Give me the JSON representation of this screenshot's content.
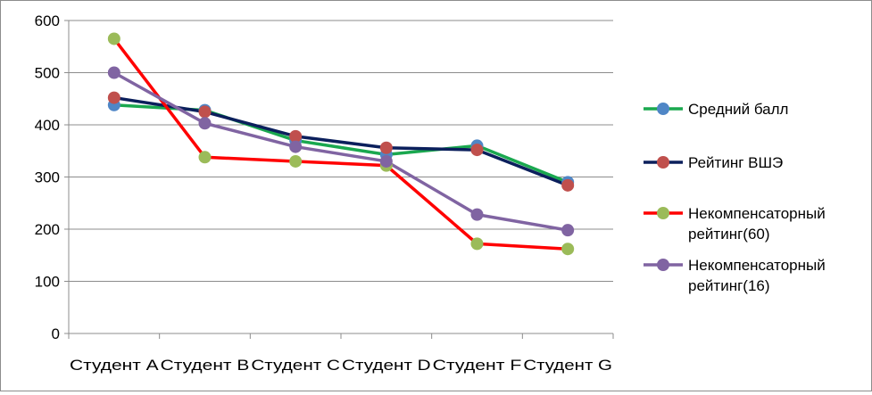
{
  "chart_data": {
    "type": "line",
    "title": "",
    "xlabel": "",
    "ylabel": "",
    "categories": [
      "Студент A",
      "Студент B",
      "Студент C",
      "Студент D",
      "Студент F",
      "Студент G"
    ],
    "ylim": [
      0,
      600
    ],
    "yticks": [
      0,
      100,
      200,
      300,
      400,
      500,
      600
    ],
    "grid": true,
    "legend_position": "right",
    "series": [
      {
        "name": "Средний балл",
        "line_color": "#1aa84f",
        "marker_color": "#4f86c6",
        "values": [
          438,
          428,
          370,
          343,
          360,
          290
        ]
      },
      {
        "name": "Рейтинг ВШЭ",
        "line_color": "#0b1f5c",
        "marker_color": "#c0504d",
        "values": [
          452,
          425,
          378,
          356,
          352,
          284
        ]
      },
      {
        "name": "Некомпенсаторный рейтинг(60)",
        "name_lines": [
          "Некомпенсаторный",
          "рейтинг(60)"
        ],
        "line_color": "#ff0000",
        "marker_color": "#9bbb59",
        "values": [
          565,
          338,
          330,
          322,
          172,
          162
        ]
      },
      {
        "name": "Некомпенсаторный рейтинг(16)",
        "name_lines": [
          "Некомпенсаторный",
          "рейтинг(16)"
        ],
        "line_color": "#8064a2",
        "marker_color": "#8064a2",
        "values": [
          500,
          403,
          358,
          330,
          228,
          198
        ]
      }
    ]
  }
}
